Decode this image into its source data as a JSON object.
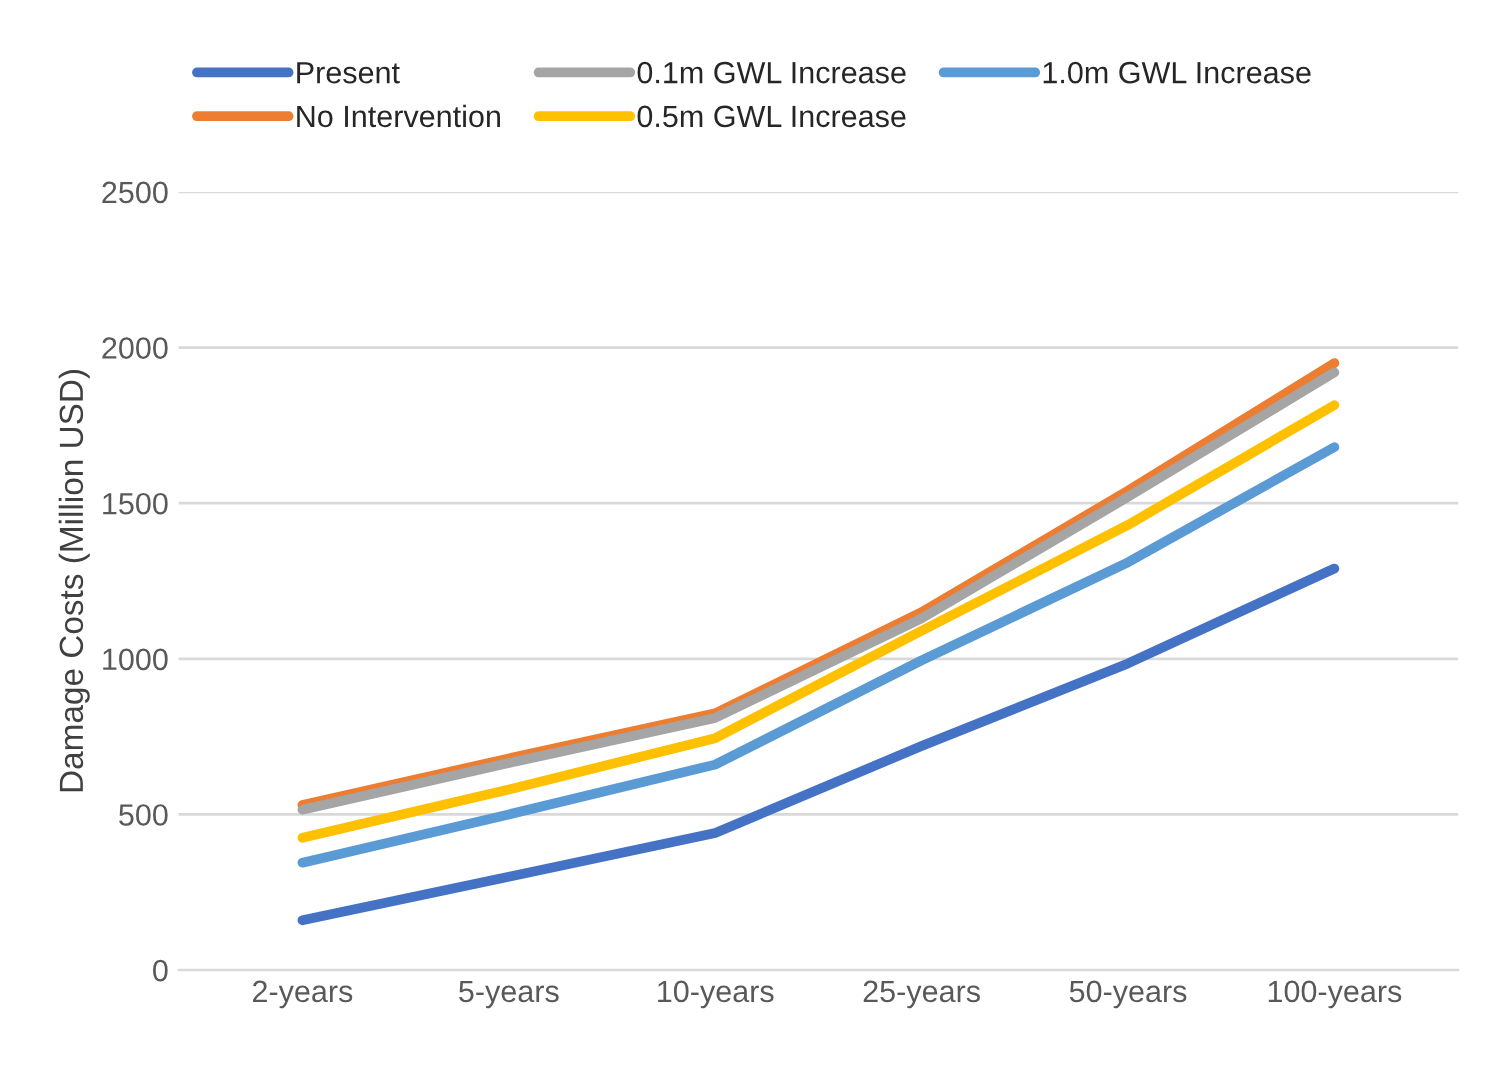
{
  "chart_data": {
    "type": "line",
    "ylabel": "Damage Costs (Million USD)",
    "categories": [
      "2-years",
      "5-years",
      "10-years",
      "25-years",
      "50-years",
      "100-years"
    ],
    "series": [
      {
        "name": "Present",
        "color": "#4472c4",
        "values": [
          160,
          300,
          440,
          720,
          985,
          1290
        ]
      },
      {
        "name": "No Intervention",
        "color": "#ed7d31",
        "values": [
          530,
          680,
          825,
          1150,
          1540,
          1950
        ]
      },
      {
        "name": "0.1m GWL Increase",
        "color": "#a5a5a5",
        "values": [
          515,
          665,
          810,
          1130,
          1520,
          1920
        ]
      },
      {
        "name": "0.5m GWL Increase",
        "color": "#ffc000",
        "values": [
          425,
          580,
          745,
          1090,
          1430,
          1815
        ]
      },
      {
        "name": "1.0m GWL Increase",
        "color": "#5b9bd5",
        "values": [
          345,
          500,
          660,
          995,
          1310,
          1680
        ]
      }
    ],
    "ylim": [
      0,
      2500
    ],
    "yticks": [
      0,
      500,
      1000,
      1500,
      2000,
      2500
    ],
    "grid": "y",
    "legend": "top",
    "marker": "none",
    "line_style": "solid"
  }
}
